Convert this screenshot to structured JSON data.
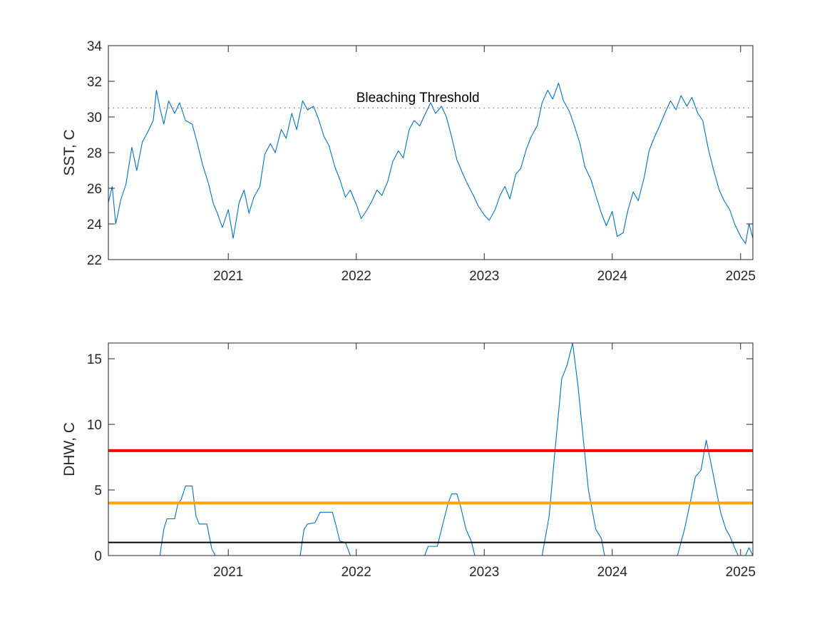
{
  "chart_data": [
    {
      "type": "line",
      "panel": "top",
      "title": "",
      "xlabel": "",
      "ylabel": "SST, C",
      "xlim": [
        "2020-01-25",
        "2025-02-05"
      ],
      "ylim": [
        22,
        34
      ],
      "x_ticks": [
        {
          "date": "2021-01-01",
          "label": "2021"
        },
        {
          "date": "2022-01-01",
          "label": "2022"
        },
        {
          "date": "2023-01-01",
          "label": "2023"
        },
        {
          "date": "2024-01-01",
          "label": "2024"
        },
        {
          "date": "2025-01-01",
          "label": "2025"
        }
      ],
      "y_ticks": [
        22,
        24,
        26,
        28,
        30,
        32,
        34
      ],
      "grid": false,
      "series": [
        {
          "color": "#0072BD",
          "points": [
            [
              "2020-01-25",
              25.2
            ],
            [
              "2020-02-05",
              26.1
            ],
            [
              "2020-02-15",
              24.0
            ],
            [
              "2020-03-01",
              25.4
            ],
            [
              "2020-03-15",
              26.2
            ],
            [
              "2020-04-01",
              28.3
            ],
            [
              "2020-04-15",
              27.0
            ],
            [
              "2020-05-01",
              28.6
            ],
            [
              "2020-05-15",
              29.1
            ],
            [
              "2020-06-01",
              29.8
            ],
            [
              "2020-06-10",
              31.5
            ],
            [
              "2020-06-20",
              30.5
            ],
            [
              "2020-07-01",
              29.6
            ],
            [
              "2020-07-15",
              30.9
            ],
            [
              "2020-08-01",
              30.2
            ],
            [
              "2020-08-15",
              30.8
            ],
            [
              "2020-09-01",
              29.8
            ],
            [
              "2020-09-20",
              29.6
            ],
            [
              "2020-10-05",
              28.5
            ],
            [
              "2020-10-20",
              27.3
            ],
            [
              "2020-11-05",
              26.3
            ],
            [
              "2020-11-20",
              25.1
            ],
            [
              "2020-12-01",
              24.6
            ],
            [
              "2020-12-15",
              23.8
            ],
            [
              "2021-01-01",
              24.8
            ],
            [
              "2021-01-15",
              23.2
            ],
            [
              "2021-02-01",
              25.2
            ],
            [
              "2021-02-15",
              25.9
            ],
            [
              "2021-03-01",
              24.6
            ],
            [
              "2021-03-15",
              25.5
            ],
            [
              "2021-04-01",
              26.1
            ],
            [
              "2021-04-15",
              27.9
            ],
            [
              "2021-05-01",
              28.5
            ],
            [
              "2021-05-15",
              28.0
            ],
            [
              "2021-06-01",
              29.3
            ],
            [
              "2021-06-15",
              28.8
            ],
            [
              "2021-07-01",
              30.2
            ],
            [
              "2021-07-15",
              29.3
            ],
            [
              "2021-08-01",
              30.9
            ],
            [
              "2021-08-15",
              30.4
            ],
            [
              "2021-09-01",
              30.6
            ],
            [
              "2021-09-15",
              29.9
            ],
            [
              "2021-10-01",
              28.9
            ],
            [
              "2021-10-15",
              28.4
            ],
            [
              "2021-11-01",
              27.2
            ],
            [
              "2021-11-15",
              26.5
            ],
            [
              "2021-12-01",
              25.5
            ],
            [
              "2021-12-15",
              25.9
            ],
            [
              "2022-01-01",
              25.1
            ],
            [
              "2022-01-15",
              24.3
            ],
            [
              "2022-02-01",
              24.8
            ],
            [
              "2022-02-15",
              25.3
            ],
            [
              "2022-03-01",
              25.9
            ],
            [
              "2022-03-15",
              25.6
            ],
            [
              "2022-04-01",
              26.4
            ],
            [
              "2022-04-15",
              27.5
            ],
            [
              "2022-05-01",
              28.1
            ],
            [
              "2022-05-15",
              27.7
            ],
            [
              "2022-06-01",
              29.3
            ],
            [
              "2022-06-15",
              29.8
            ],
            [
              "2022-07-01",
              29.5
            ],
            [
              "2022-07-15",
              30.1
            ],
            [
              "2022-08-01",
              30.8
            ],
            [
              "2022-08-15",
              30.2
            ],
            [
              "2022-09-01",
              30.6
            ],
            [
              "2022-09-15",
              30.0
            ],
            [
              "2022-10-01",
              28.8
            ],
            [
              "2022-10-15",
              27.6
            ],
            [
              "2022-11-01",
              26.8
            ],
            [
              "2022-11-15",
              26.2
            ],
            [
              "2022-12-01",
              25.6
            ],
            [
              "2022-12-15",
              25.0
            ],
            [
              "2023-01-01",
              24.5
            ],
            [
              "2023-01-15",
              24.2
            ],
            [
              "2023-02-01",
              24.8
            ],
            [
              "2023-02-15",
              25.6
            ],
            [
              "2023-03-01",
              26.1
            ],
            [
              "2023-03-15",
              25.4
            ],
            [
              "2023-04-01",
              26.8
            ],
            [
              "2023-04-15",
              27.1
            ],
            [
              "2023-05-01",
              28.2
            ],
            [
              "2023-05-15",
              28.9
            ],
            [
              "2023-06-01",
              29.5
            ],
            [
              "2023-06-15",
              30.8
            ],
            [
              "2023-07-01",
              31.5
            ],
            [
              "2023-07-15",
              31.0
            ],
            [
              "2023-08-01",
              31.9
            ],
            [
              "2023-08-15",
              30.9
            ],
            [
              "2023-09-01",
              30.3
            ],
            [
              "2023-09-15",
              29.5
            ],
            [
              "2023-10-01",
              28.5
            ],
            [
              "2023-10-15",
              27.2
            ],
            [
              "2023-11-01",
              26.5
            ],
            [
              "2023-11-15",
              25.6
            ],
            [
              "2023-12-01",
              24.6
            ],
            [
              "2023-12-15",
              23.9
            ],
            [
              "2024-01-01",
              24.7
            ],
            [
              "2024-01-15",
              23.3
            ],
            [
              "2024-02-01",
              23.5
            ],
            [
              "2024-02-15",
              24.8
            ],
            [
              "2024-03-01",
              25.8
            ],
            [
              "2024-03-15",
              25.3
            ],
            [
              "2024-04-01",
              26.6
            ],
            [
              "2024-04-15",
              28.1
            ],
            [
              "2024-05-01",
              28.9
            ],
            [
              "2024-05-15",
              29.5
            ],
            [
              "2024-06-01",
              30.3
            ],
            [
              "2024-06-15",
              30.9
            ],
            [
              "2024-07-01",
              30.4
            ],
            [
              "2024-07-15",
              31.2
            ],
            [
              "2024-08-01",
              30.6
            ],
            [
              "2024-08-15",
              31.1
            ],
            [
              "2024-09-01",
              30.2
            ],
            [
              "2024-09-15",
              29.8
            ],
            [
              "2024-10-01",
              28.2
            ],
            [
              "2024-10-15",
              27.1
            ],
            [
              "2024-11-01",
              25.9
            ],
            [
              "2024-11-15",
              25.3
            ],
            [
              "2024-12-01",
              24.8
            ],
            [
              "2024-12-15",
              24.0
            ],
            [
              "2025-01-01",
              23.3
            ],
            [
              "2025-01-15",
              22.9
            ],
            [
              "2025-01-25",
              24.0
            ],
            [
              "2025-02-05",
              23.2
            ]
          ]
        },
        {
          "name": "Bleaching Threshold",
          "style": "dotted",
          "color": "#7E6BC9",
          "constant_y": 30.5
        }
      ],
      "annotations": [
        {
          "text": "Bleaching Threshold",
          "x": "2022-01-01",
          "y": 30.6
        }
      ]
    },
    {
      "type": "line",
      "panel": "bottom",
      "title": "",
      "xlabel": "",
      "ylabel": "DHW, C",
      "xlim": [
        "2020-01-25",
        "2025-02-05"
      ],
      "ylim": [
        0,
        16.2
      ],
      "x_ticks": [
        {
          "date": "2021-01-01",
          "label": "2021"
        },
        {
          "date": "2022-01-01",
          "label": "2022"
        },
        {
          "date": "2023-01-01",
          "label": "2023"
        },
        {
          "date": "2024-01-01",
          "label": "2024"
        },
        {
          "date": "2025-01-01",
          "label": "2025"
        }
      ],
      "y_ticks": [
        0,
        5,
        10,
        15
      ],
      "grid": false,
      "series": [
        {
          "color": "#0072BD",
          "points": [
            [
              "2020-01-25",
              0
            ],
            [
              "2020-06-20",
              0
            ],
            [
              "2020-07-01",
              2.0
            ],
            [
              "2020-07-10",
              2.8
            ],
            [
              "2020-08-01",
              2.8
            ],
            [
              "2020-08-10",
              3.9
            ],
            [
              "2020-08-20",
              4.3
            ],
            [
              "2020-09-01",
              5.3
            ],
            [
              "2020-09-20",
              5.3
            ],
            [
              "2020-10-01",
              3.0
            ],
            [
              "2020-10-10",
              2.4
            ],
            [
              "2020-11-01",
              2.4
            ],
            [
              "2020-11-15",
              0.5
            ],
            [
              "2020-11-25",
              0
            ],
            [
              "2021-07-25",
              0
            ],
            [
              "2021-08-05",
              2.0
            ],
            [
              "2021-08-15",
              2.4
            ],
            [
              "2021-09-05",
              2.5
            ],
            [
              "2021-09-20",
              3.3
            ],
            [
              "2021-10-25",
              3.3
            ],
            [
              "2021-11-05",
              2.2
            ],
            [
              "2021-11-15",
              1.1
            ],
            [
              "2021-12-01",
              1.0
            ],
            [
              "2021-12-15",
              0
            ],
            [
              "2022-07-15",
              0
            ],
            [
              "2022-07-25",
              0.7
            ],
            [
              "2022-08-20",
              0.7
            ],
            [
              "2022-09-01",
              2.0
            ],
            [
              "2022-09-20",
              4.0
            ],
            [
              "2022-09-30",
              4.7
            ],
            [
              "2022-10-15",
              4.7
            ],
            [
              "2022-10-25",
              3.8
            ],
            [
              "2022-11-10",
              2.0
            ],
            [
              "2022-11-25",
              1.1
            ],
            [
              "2022-12-05",
              0
            ],
            [
              "2023-06-15",
              0
            ],
            [
              "2023-07-05",
              3.0
            ],
            [
              "2023-07-20",
              7.5
            ],
            [
              "2023-08-10",
              13.5
            ],
            [
              "2023-08-25",
              14.5
            ],
            [
              "2023-09-10",
              16.2
            ],
            [
              "2023-09-25",
              13.0
            ],
            [
              "2023-10-10",
              9.0
            ],
            [
              "2023-10-25",
              5.0
            ],
            [
              "2023-11-15",
              2.0
            ],
            [
              "2023-12-01",
              1.3
            ],
            [
              "2023-12-10",
              0
            ],
            [
              "2024-07-05",
              0
            ],
            [
              "2024-07-25",
              2.0
            ],
            [
              "2024-08-10",
              4.0
            ],
            [
              "2024-08-25",
              6.0
            ],
            [
              "2024-09-10",
              6.5
            ],
            [
              "2024-09-25",
              8.8
            ],
            [
              "2024-10-05",
              7.5
            ],
            [
              "2024-10-20",
              5.5
            ],
            [
              "2024-11-05",
              3.3
            ],
            [
              "2024-11-20",
              2.0
            ],
            [
              "2024-12-01",
              1.5
            ],
            [
              "2024-12-15",
              0.6
            ],
            [
              "2024-12-25",
              0
            ],
            [
              "2025-01-15",
              0
            ],
            [
              "2025-01-25",
              0.6
            ],
            [
              "2025-02-05",
              0
            ]
          ]
        },
        {
          "style": "solid-thick",
          "color": "#FF0000",
          "constant_y": 8
        },
        {
          "style": "solid-thick",
          "color": "#FFA500",
          "constant_y": 4
        },
        {
          "style": "solid",
          "color": "#000000",
          "constant_y": 1
        }
      ]
    }
  ]
}
